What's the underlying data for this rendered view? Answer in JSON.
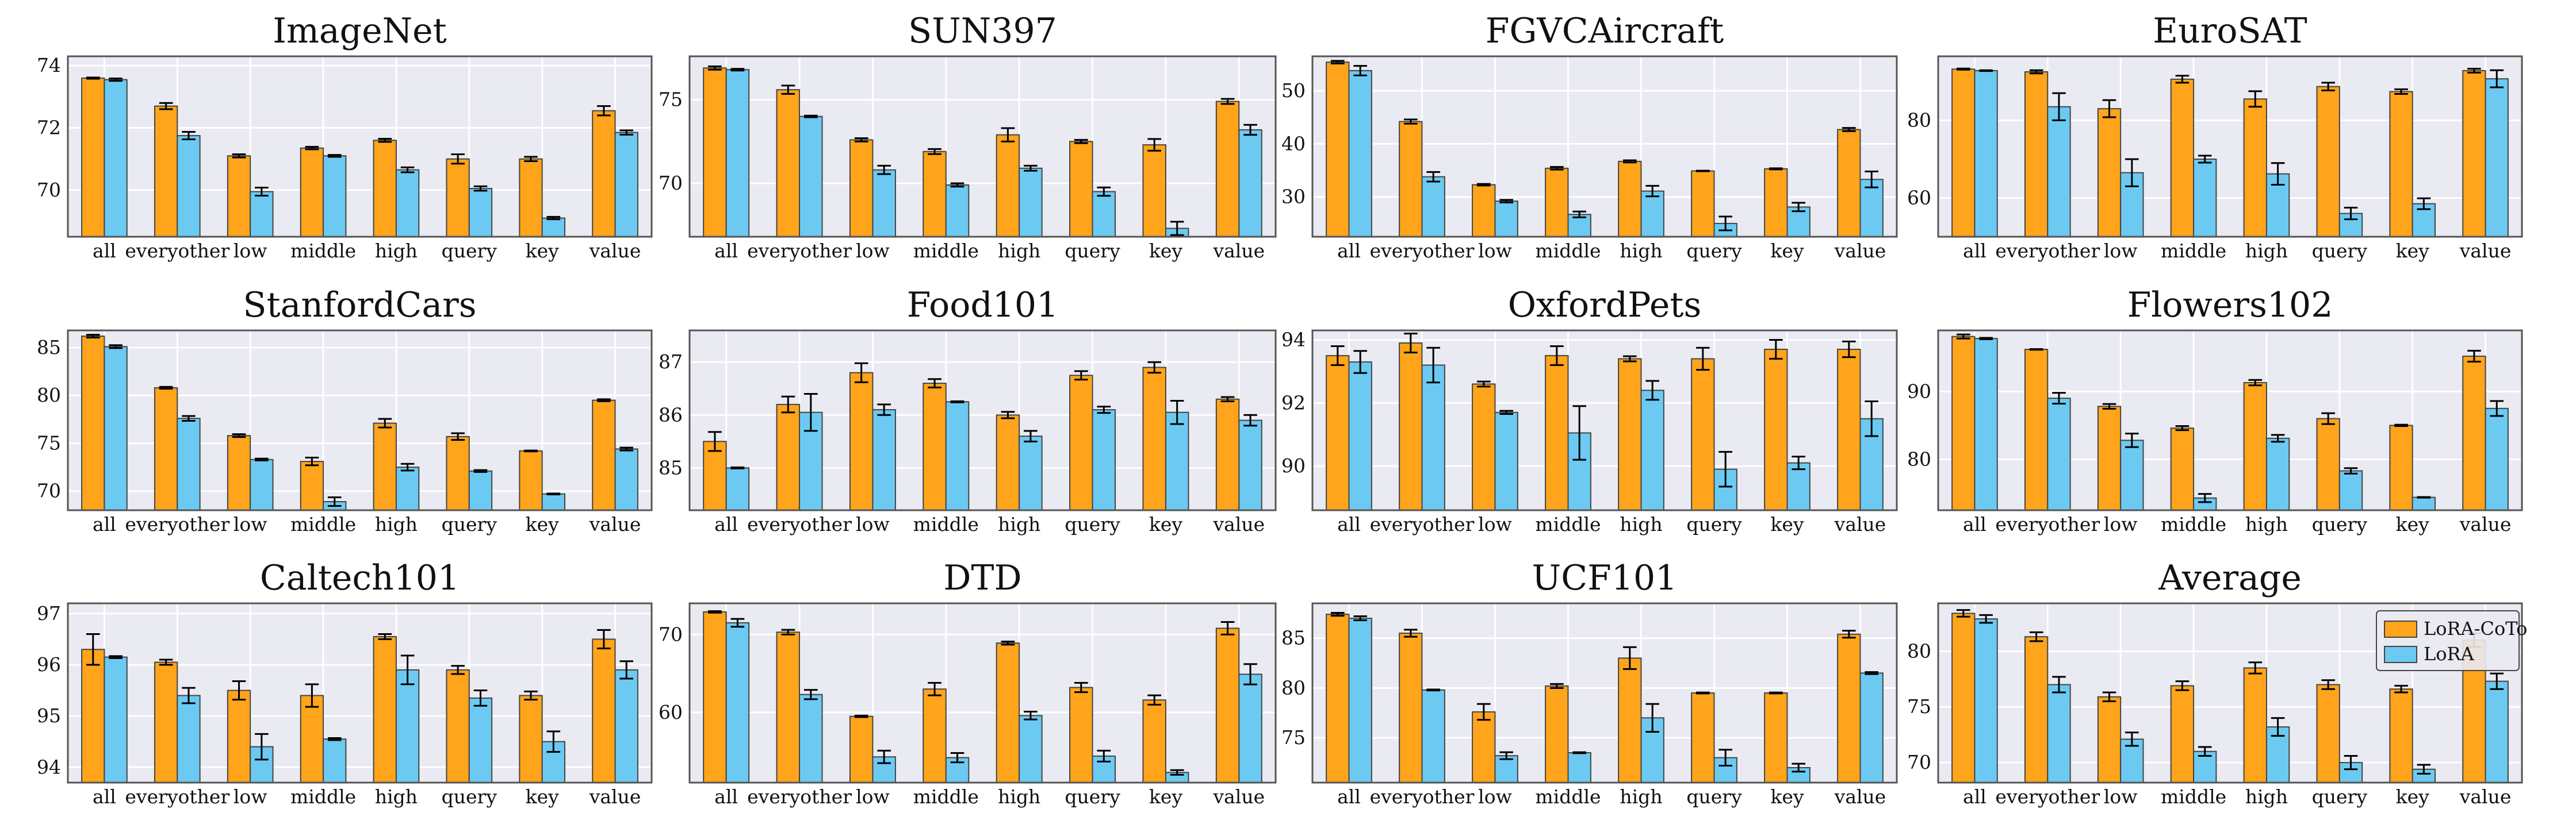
{
  "colors": {
    "lora_coto": "#FFA41B",
    "lora": "#6CCAF2",
    "plot_bg": "#EAEAF2",
    "grid": "#FFFFFF",
    "frame": "#555555",
    "bar_edge": "#444444"
  },
  "legend": {
    "placement": "upper-right of last panel",
    "entries": [
      "LoRA-CoTo",
      "LoRA"
    ]
  },
  "chart_data": [
    {
      "type": "bar",
      "title": "ImageNet",
      "categories": [
        "all",
        "everyother",
        "low",
        "middle",
        "high",
        "query",
        "key",
        "value"
      ],
      "ylim": [
        68.5,
        74.3
      ],
      "yticks": [
        70,
        72,
        74
      ],
      "series": [
        {
          "name": "LoRA-CoTo",
          "values": [
            73.6,
            72.7,
            71.1,
            71.35,
            71.6,
            71.0,
            71.0,
            72.55
          ],
          "errors": [
            0.02,
            0.1,
            0.05,
            0.04,
            0.05,
            0.15,
            0.07,
            0.15
          ]
        },
        {
          "name": "LoRA",
          "values": [
            73.55,
            71.75,
            69.95,
            71.1,
            70.65,
            70.05,
            69.1,
            71.85
          ],
          "errors": [
            0.04,
            0.12,
            0.13,
            0.03,
            0.08,
            0.07,
            0.04,
            0.07
          ]
        }
      ]
    },
    {
      "type": "bar",
      "title": "SUN397",
      "categories": [
        "all",
        "everyother",
        "low",
        "middle",
        "high",
        "query",
        "key",
        "value"
      ],
      "ylim": [
        66.8,
        77.6
      ],
      "yticks": [
        70,
        75
      ],
      "series": [
        {
          "name": "LoRA-CoTo",
          "values": [
            76.9,
            75.6,
            72.6,
            71.9,
            72.9,
            72.5,
            72.3,
            74.9
          ],
          "errors": [
            0.1,
            0.25,
            0.1,
            0.15,
            0.4,
            0.1,
            0.35,
            0.15
          ]
        },
        {
          "name": "LoRA",
          "values": [
            76.8,
            74.0,
            70.8,
            69.9,
            70.9,
            69.5,
            67.3,
            73.2
          ],
          "errors": [
            0.05,
            0.05,
            0.25,
            0.1,
            0.15,
            0.25,
            0.4,
            0.3
          ]
        }
      ]
    },
    {
      "type": "bar",
      "title": "FGVCAircraft",
      "categories": [
        "all",
        "everyother",
        "low",
        "middle",
        "high",
        "query",
        "key",
        "value"
      ],
      "ylim": [
        22.5,
        56.5
      ],
      "yticks": [
        30,
        40,
        50
      ],
      "series": [
        {
          "name": "LoRA-CoTo",
          "values": [
            55.4,
            44.2,
            32.3,
            35.4,
            36.7,
            34.9,
            35.3,
            42.7
          ],
          "errors": [
            0.25,
            0.4,
            0.15,
            0.25,
            0.2,
            0.05,
            0.1,
            0.3
          ]
        },
        {
          "name": "LoRA",
          "values": [
            53.8,
            33.8,
            29.2,
            26.7,
            31.1,
            25.0,
            28.1,
            33.3
          ],
          "errors": [
            0.9,
            0.9,
            0.25,
            0.55,
            1.0,
            1.3,
            0.8,
            1.5
          ]
        }
      ]
    },
    {
      "type": "bar",
      "title": "EuroSAT",
      "categories": [
        "all",
        "everyother",
        "low",
        "middle",
        "high",
        "query",
        "key",
        "value"
      ],
      "ylim": [
        50,
        96.5
      ],
      "yticks": [
        60,
        80
      ],
      "series": [
        {
          "name": "LoRA-CoTo",
          "values": [
            93.2,
            92.5,
            83.0,
            90.6,
            85.5,
            88.7,
            87.4,
            92.8
          ],
          "errors": [
            0.15,
            0.4,
            2.2,
            0.9,
            2.0,
            1.0,
            0.6,
            0.5
          ]
        },
        {
          "name": "LoRA",
          "values": [
            92.8,
            83.5,
            66.5,
            70.0,
            66.2,
            56.0,
            58.5,
            90.7
          ],
          "errors": [
            0.1,
            3.5,
            3.5,
            0.9,
            2.8,
            1.5,
            1.4,
            2.2
          ]
        }
      ]
    },
    {
      "type": "bar",
      "title": "StanfordCars",
      "categories": [
        "all",
        "everyother",
        "low",
        "middle",
        "high",
        "query",
        "key",
        "value"
      ],
      "ylim": [
        68,
        86.8
      ],
      "yticks": [
        70,
        75,
        80,
        85
      ],
      "series": [
        {
          "name": "LoRA-CoTo",
          "values": [
            86.2,
            80.8,
            75.8,
            73.1,
            77.1,
            75.7,
            74.2,
            79.5
          ],
          "errors": [
            0.15,
            0.1,
            0.15,
            0.4,
            0.45,
            0.35,
            0.05,
            0.1
          ]
        },
        {
          "name": "LoRA",
          "values": [
            85.1,
            77.6,
            73.3,
            68.9,
            72.5,
            72.1,
            69.7,
            74.4
          ],
          "errors": [
            0.15,
            0.25,
            0.1,
            0.45,
            0.35,
            0.1,
            0.05,
            0.15
          ]
        }
      ]
    },
    {
      "type": "bar",
      "title": "Food101",
      "categories": [
        "all",
        "everyother",
        "low",
        "middle",
        "high",
        "query",
        "key",
        "value"
      ],
      "ylim": [
        84.2,
        87.6
      ],
      "yticks": [
        85,
        86,
        87
      ],
      "series": [
        {
          "name": "LoRA-CoTo",
          "values": [
            85.5,
            86.2,
            86.8,
            86.6,
            86.0,
            86.75,
            86.9,
            86.3
          ],
          "errors": [
            0.18,
            0.15,
            0.18,
            0.08,
            0.06,
            0.08,
            0.1,
            0.04
          ]
        },
        {
          "name": "LoRA",
          "values": [
            85.0,
            86.05,
            86.1,
            86.25,
            85.6,
            86.1,
            86.05,
            85.9
          ],
          "errors": [
            0.01,
            0.35,
            0.1,
            0.01,
            0.1,
            0.06,
            0.22,
            0.1
          ]
        }
      ]
    },
    {
      "type": "bar",
      "title": "OxfordPets",
      "categories": [
        "all",
        "everyother",
        "low",
        "middle",
        "high",
        "query",
        "key",
        "value"
      ],
      "ylim": [
        88.6,
        94.3
      ],
      "yticks": [
        90,
        92,
        94
      ],
      "series": [
        {
          "name": "LoRA-CoTo",
          "values": [
            93.5,
            93.9,
            92.6,
            93.5,
            93.4,
            93.4,
            93.7,
            93.7
          ],
          "errors": [
            0.3,
            0.3,
            0.08,
            0.3,
            0.08,
            0.35,
            0.3,
            0.25
          ]
        },
        {
          "name": "LoRA",
          "values": [
            93.3,
            93.2,
            91.7,
            91.05,
            92.4,
            89.9,
            90.1,
            91.5
          ],
          "errors": [
            0.35,
            0.55,
            0.05,
            0.85,
            0.3,
            0.55,
            0.2,
            0.55
          ]
        }
      ]
    },
    {
      "type": "bar",
      "title": "Flowers102",
      "categories": [
        "all",
        "everyother",
        "low",
        "middle",
        "high",
        "query",
        "key",
        "value"
      ],
      "ylim": [
        72.5,
        99
      ],
      "yticks": [
        80,
        90
      ],
      "series": [
        {
          "name": "LoRA-CoTo",
          "values": [
            98.1,
            96.2,
            87.8,
            84.6,
            91.3,
            86.0,
            85.0,
            95.2
          ],
          "errors": [
            0.3,
            0.05,
            0.35,
            0.3,
            0.4,
            0.8,
            0.1,
            0.8
          ]
        },
        {
          "name": "LoRA",
          "values": [
            97.8,
            89.0,
            82.8,
            74.3,
            83.1,
            78.3,
            74.4,
            87.5
          ],
          "errors": [
            0.1,
            0.8,
            1.0,
            0.6,
            0.5,
            0.4,
            0.05,
            1.1
          ]
        }
      ]
    },
    {
      "type": "bar",
      "title": "Caltech101",
      "categories": [
        "all",
        "everyother",
        "low",
        "middle",
        "high",
        "query",
        "key",
        "value"
      ],
      "ylim": [
        93.7,
        97.2
      ],
      "yticks": [
        94,
        95,
        96,
        97
      ],
      "series": [
        {
          "name": "LoRA-CoTo",
          "values": [
            96.3,
            96.05,
            95.5,
            95.4,
            96.55,
            95.9,
            95.4,
            96.5
          ],
          "errors": [
            0.3,
            0.05,
            0.18,
            0.22,
            0.05,
            0.08,
            0.08,
            0.18
          ]
        },
        {
          "name": "LoRA",
          "values": [
            96.15,
            95.4,
            94.4,
            94.55,
            95.9,
            95.35,
            94.5,
            95.9
          ],
          "errors": [
            0.02,
            0.15,
            0.25,
            0.02,
            0.28,
            0.15,
            0.2,
            0.17
          ]
        }
      ]
    },
    {
      "type": "bar",
      "title": "DTD",
      "categories": [
        "all",
        "everyother",
        "low",
        "middle",
        "high",
        "query",
        "key",
        "value"
      ],
      "ylim": [
        51,
        74
      ],
      "yticks": [
        60,
        70
      ],
      "series": [
        {
          "name": "LoRA-CoTo",
          "values": [
            72.9,
            70.3,
            59.5,
            63.0,
            68.9,
            63.2,
            61.6,
            70.8
          ],
          "errors": [
            0.1,
            0.3,
            0.1,
            0.8,
            0.2,
            0.6,
            0.6,
            0.8
          ]
        },
        {
          "name": "LoRA",
          "values": [
            71.5,
            62.3,
            54.3,
            54.2,
            59.6,
            54.4,
            52.3,
            64.9
          ],
          "errors": [
            0.5,
            0.6,
            0.8,
            0.6,
            0.5,
            0.7,
            0.3,
            1.3
          ]
        }
      ]
    },
    {
      "type": "bar",
      "title": "UCF101",
      "categories": [
        "all",
        "everyother",
        "low",
        "middle",
        "high",
        "query",
        "key",
        "value"
      ],
      "ylim": [
        70.5,
        88.5
      ],
      "yticks": [
        75,
        80,
        85
      ],
      "series": [
        {
          "name": "LoRA-CoTo",
          "values": [
            87.4,
            85.5,
            77.6,
            80.2,
            83.0,
            79.5,
            79.5,
            85.4
          ],
          "errors": [
            0.15,
            0.35,
            0.8,
            0.2,
            1.1,
            0.05,
            0.05,
            0.35
          ]
        },
        {
          "name": "LoRA",
          "values": [
            87.0,
            79.8,
            73.2,
            73.5,
            77.0,
            73.0,
            72.0,
            81.5
          ],
          "errors": [
            0.2,
            0.05,
            0.35,
            0.05,
            1.4,
            0.8,
            0.4,
            0.1
          ]
        }
      ]
    },
    {
      "type": "bar",
      "title": "Average",
      "categories": [
        "all",
        "everyother",
        "low",
        "middle",
        "high",
        "query",
        "key",
        "value"
      ],
      "ylim": [
        68.2,
        84.3
      ],
      "yticks": [
        70,
        75,
        80
      ],
      "series": [
        {
          "name": "LoRA-CoTo",
          "values": [
            83.4,
            81.3,
            75.9,
            76.9,
            78.5,
            77.0,
            76.6,
            81.0
          ],
          "errors": [
            0.3,
            0.4,
            0.4,
            0.4,
            0.5,
            0.4,
            0.3,
            0.6
          ]
        },
        {
          "name": "LoRA",
          "values": [
            82.9,
            77.0,
            72.1,
            71.0,
            73.2,
            70.0,
            69.4,
            77.3
          ],
          "errors": [
            0.35,
            0.7,
            0.6,
            0.4,
            0.8,
            0.6,
            0.4,
            0.7
          ]
        }
      ]
    }
  ]
}
